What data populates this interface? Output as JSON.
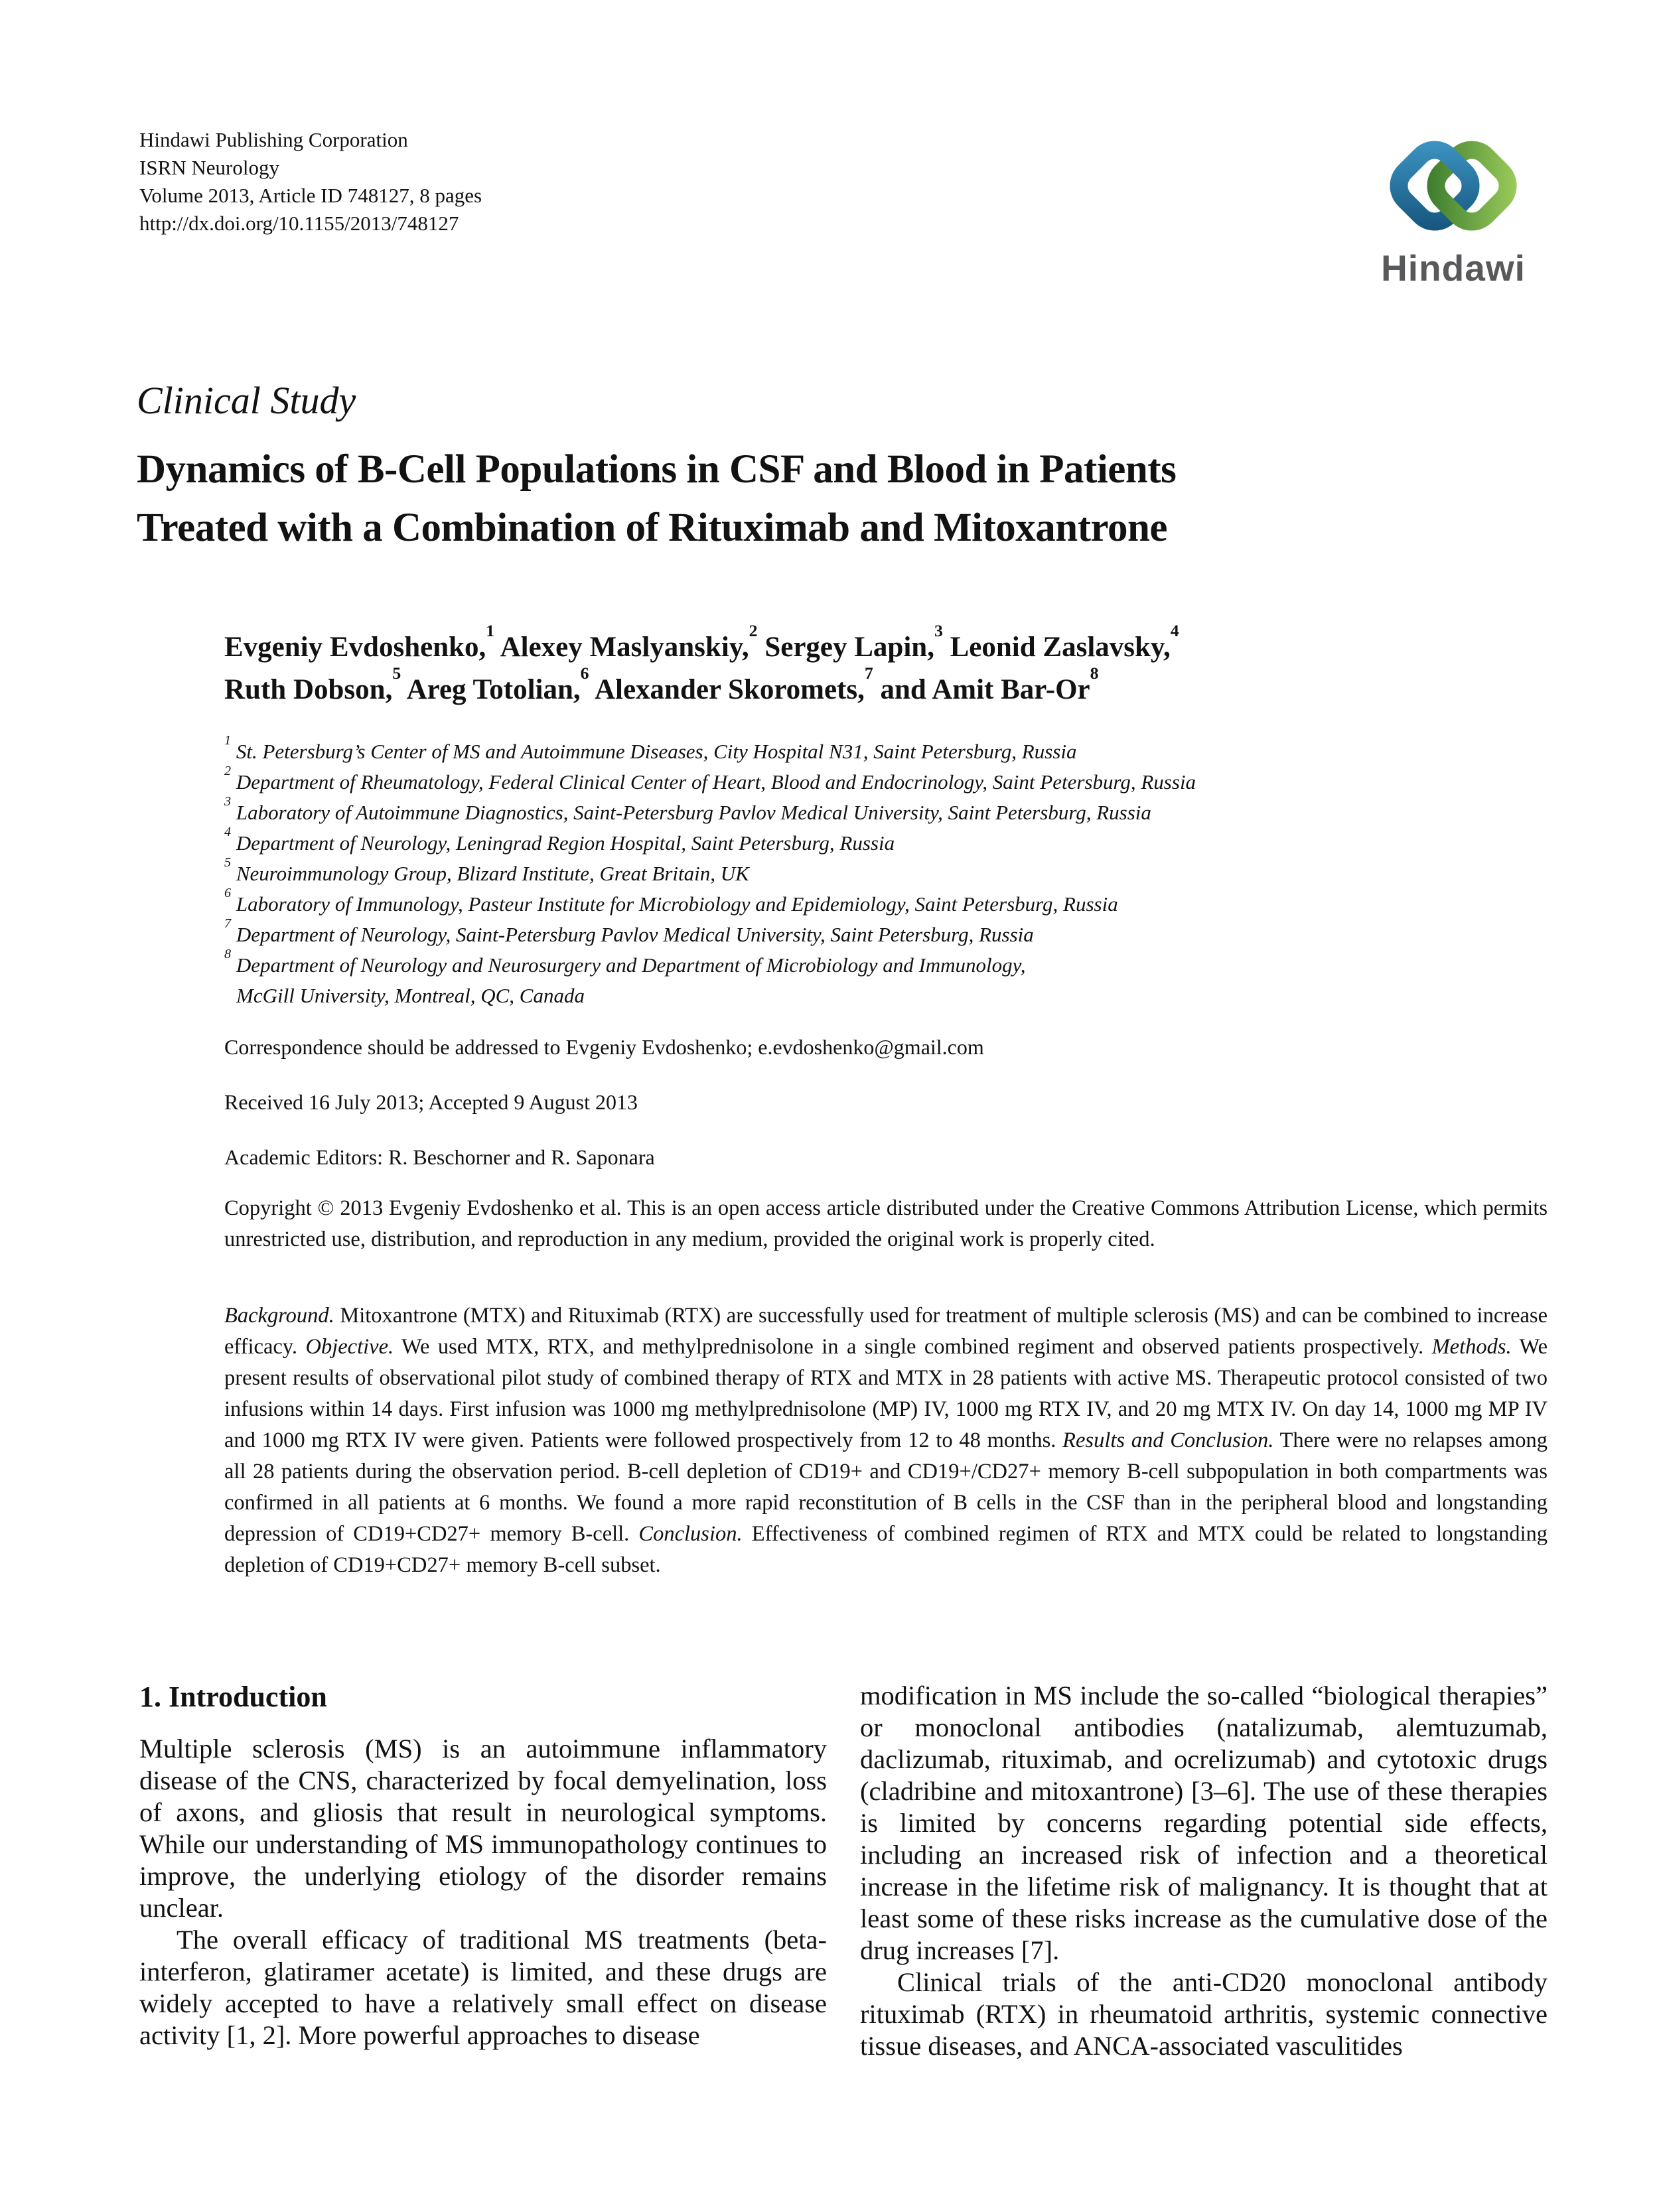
{
  "header": {
    "publisher_lines": [
      "Hindawi Publishing Corporation",
      "ISRN Neurology",
      "Volume 2013, Article ID 748127, 8 pages",
      "http://dx.doi.org/10.1155/2013/748127"
    ],
    "logo": {
      "wordmark": "Hindawi",
      "blue_light": "#3C93C2",
      "blue_dark": "#16567E",
      "green_light": "#9ACA5A",
      "green_dark": "#3E7D2F",
      "gray": "#58595B"
    }
  },
  "article": {
    "type_label": "Clinical Study",
    "title_lines": [
      "Dynamics of B-Cell Populations in CSF and Blood in Patients",
      "Treated with a Combination of Rituximab and Mitoxantrone"
    ],
    "author_lines": [
      [
        {
          "t": "Evgeniy Evdoshenko,",
          "s": "1"
        },
        {
          "t": " Alexey Maslyanskiy,",
          "s": "2"
        },
        {
          "t": " Sergey Lapin,",
          "s": "3"
        },
        {
          "t": " Leonid Zaslavsky,",
          "s": "4"
        }
      ],
      [
        {
          "t": "Ruth Dobson,",
          "s": "5"
        },
        {
          "t": " Areg Totolian,",
          "s": "6"
        },
        {
          "t": " Alexander Skoromets,",
          "s": "7"
        },
        {
          "t": " and Amit Bar-Or",
          "s": "8"
        }
      ]
    ],
    "affiliations": [
      {
        "num": "1",
        "text": "St. Petersburg’s Center of MS and Autoimmune Diseases, City Hospital N31, Saint Petersburg, Russia"
      },
      {
        "num": "2",
        "text": "Department of Rheumatology, Federal Clinical Center of Heart, Blood and Endocrinology, Saint Petersburg, Russia"
      },
      {
        "num": "3",
        "text": "Laboratory of Autoimmune Diagnostics, Saint-Petersburg Pavlov Medical University, Saint Petersburg, Russia"
      },
      {
        "num": "4",
        "text": "Department of Neurology, Leningrad Region Hospital, Saint Petersburg, Russia"
      },
      {
        "num": "5",
        "text": "Neuroimmunology Group, Blizard Institute, Great Britain, UK"
      },
      {
        "num": "6",
        "text": "Laboratory of Immunology, Pasteur Institute for Microbiology and Epidemiology, Saint Petersburg, Russia"
      },
      {
        "num": "7",
        "text": "Department of Neurology, Saint-Petersburg Pavlov Medical University, Saint Petersburg, Russia"
      },
      {
        "num": "8",
        "text": "Department of Neurology and Neurosurgery and Department of Microbiology and Immunology,",
        "text2": "McGill University, Montreal, QC, Canada"
      }
    ],
    "correspondence": "Correspondence should be addressed to Evgeniy Evdoshenko; e.evdoshenko@gmail.com",
    "dates": "Received 16 July 2013; Accepted 9 August 2013",
    "editors": "Academic Editors: R. Beschorner and R. Saponara",
    "copyright": "Copyright © 2013 Evgeniy Evdoshenko et al. This is an open access article distributed under the Creative Commons Attribution License, which permits unrestricted use, distribution, and reproduction in any medium, provided the original work is properly cited.",
    "abstract_segments": [
      {
        "style": "italic",
        "text": "Background."
      },
      {
        "style": "normal",
        "text": " Mitoxantrone (MTX) and Rituximab (RTX) are successfully used for treatment of multiple sclerosis (MS) and can be combined to increase efficacy. "
      },
      {
        "style": "italic",
        "text": "Objective."
      },
      {
        "style": "normal",
        "text": " We used MTX, RTX, and methylprednisolone in a single combined regiment and observed patients prospectively. "
      },
      {
        "style": "italic",
        "text": "Methods."
      },
      {
        "style": "normal",
        "text": " We present results of observational pilot study of combined therapy of RTX and MTX in 28 patients with active MS. Therapeutic protocol consisted of two infusions within 14 days. First infusion was 1000 mg methylprednisolone (MP) IV, 1000 mg RTX IV, and 20 mg MTX IV. On day 14, 1000 mg MP IV and 1000 mg RTX IV were given. Patients were followed prospectively from 12 to 48 months. "
      },
      {
        "style": "italic",
        "text": "Results and Conclusion."
      },
      {
        "style": "normal",
        "text": " There were no relapses among all 28 patients during the observation period. B-cell depletion of CD19+ and CD19+/CD27+ memory B-cell subpopulation in both compartments was confirmed in all patients at 6 months. We found a more rapid reconstitution of B cells in the CSF than in the peripheral blood and longstanding depression of CD19+CD27+ memory B-cell. "
      },
      {
        "style": "italic",
        "text": "Conclusion."
      },
      {
        "style": "normal",
        "text": " Effectiveness of combined regimen of RTX and MTX could be related to longstanding depletion of CD19+CD27+ memory B-cell subset."
      }
    ]
  },
  "sections": {
    "intro": {
      "heading": "1. Introduction",
      "left_paragraphs": [
        {
          "indent": false,
          "text": "Multiple sclerosis (MS) is an autoimmune inflammatory disease of the CNS, characterized by focal demyelination, loss of axons, and gliosis that result in neurological symptoms. While our understanding of MS immunopathology continues to improve, the underlying etiology of the disorder remains unclear."
        },
        {
          "indent": true,
          "text": "The overall efficacy of traditional MS treatments (beta-interferon, glatiramer acetate) is limited, and these drugs are widely accepted to have a relatively small effect on disease activity [1, 2]. More powerful approaches to disease"
        }
      ],
      "right_paragraphs": [
        {
          "indent": false,
          "text": "modification in MS include the so-called “biological therapies” or monoclonal antibodies (natalizumab, alemtuzumab, daclizumab, rituximab, and ocrelizumab) and cytotoxic drugs (cladribine and mitoxantrone) [3–6]. The use of these therapies is limited by concerns regarding potential side effects, including an increased risk of infection and a theoretical increase in the lifetime risk of malignancy. It is thought that at least some of these risks increase as the cumulative dose of the drug increases [7]."
        },
        {
          "indent": true,
          "text": "Clinical trials of the anti-CD20 monoclonal antibody rituximab (RTX) in rheumatoid arthritis, systemic connective tissue diseases, and ANCA-associated vasculitides"
        }
      ]
    }
  }
}
